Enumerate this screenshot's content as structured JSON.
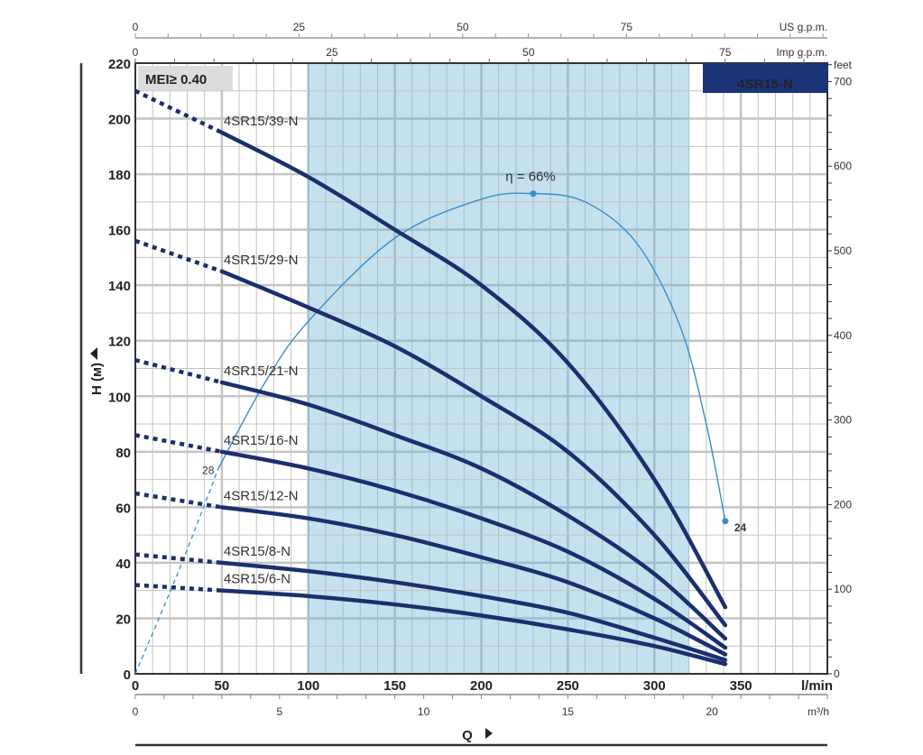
{
  "chart_data": {
    "type": "line",
    "title": "4SR15-N",
    "badge": "MEI≥ 0.40",
    "xlabel": "Q",
    "xunit": "l/min",
    "ylabel": "H (м)",
    "xlim": [
      0,
      400
    ],
    "ylim": [
      0,
      220
    ],
    "x_ticks": [
      0,
      50,
      100,
      150,
      200,
      250,
      300,
      350
    ],
    "y_ticks": [
      0,
      20,
      40,
      60,
      80,
      100,
      120,
      140,
      160,
      180,
      200,
      220
    ],
    "grid": true,
    "preferred_range": [
      100,
      320
    ],
    "x": [
      0,
      50,
      100,
      150,
      200,
      250,
      300,
      341
    ],
    "series": [
      {
        "name": "4SR15/39-N",
        "values": [
          210,
          195,
          179,
          160,
          140,
          112,
          70,
          24
        ]
      },
      {
        "name": "4SR15/29-N",
        "values": [
          156,
          145,
          132,
          118,
          100,
          80,
          50,
          17.5
        ]
      },
      {
        "name": "4SR15/21-N",
        "values": [
          113,
          105,
          97,
          86,
          74,
          57,
          36,
          12.7
        ]
      },
      {
        "name": "4SR15/16-N",
        "values": [
          86,
          80,
          74,
          66,
          56,
          44,
          27,
          9.4
        ]
      },
      {
        "name": "4SR15/12-N",
        "values": [
          65,
          60,
          56,
          50,
          42,
          33,
          20,
          7
        ]
      },
      {
        "name": "4SR15/8-N",
        "values": [
          43,
          40,
          37,
          33,
          28,
          22,
          13,
          5
        ]
      },
      {
        "name": "4SR15/6-N",
        "values": [
          32,
          30,
          28,
          25,
          21,
          16,
          10,
          3.5
        ]
      }
    ],
    "efficiency_curve": {
      "label": "η = 66%",
      "points": [
        [
          0,
          0
        ],
        [
          25,
          37
        ],
        [
          48,
          74
        ],
        [
          75,
          105
        ],
        [
          100,
          127
        ],
        [
          150,
          157
        ],
        [
          200,
          171
        ],
        [
          230,
          173
        ],
        [
          260,
          170
        ],
        [
          290,
          155
        ],
        [
          315,
          125
        ],
        [
          330,
          90
        ],
        [
          341,
          55
        ]
      ],
      "start_label": "28",
      "end_label": "24"
    },
    "secondary_axes": {
      "us_gpm": {
        "label": "US g.p.m.",
        "ticks": [
          0,
          25,
          50,
          75
        ]
      },
      "imp_gpm": {
        "label": "Imp g.p.m.",
        "ticks": [
          0,
          25,
          50,
          75
        ]
      },
      "feet": {
        "label": "feet",
        "ticks": [
          0,
          100,
          200,
          300,
          400,
          500,
          600,
          700
        ]
      },
      "m3h": {
        "label": "m³/h",
        "ticks": [
          0,
          5,
          10,
          15,
          20
        ]
      }
    },
    "colors": {
      "curve": "#1b2f6e",
      "efficiency": "#3a8fc8",
      "band": "#c6e1ee",
      "title_bg": "#1b3478",
      "grid": "#c4c4c4",
      "grid_band": "#9fbfcf"
    }
  }
}
